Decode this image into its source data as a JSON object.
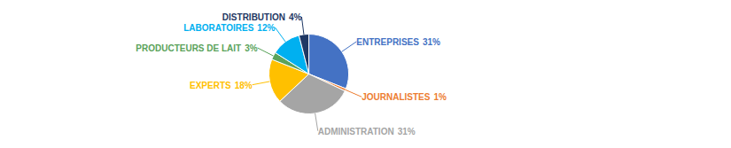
{
  "chart_data": {
    "type": "pie",
    "categories": [
      "ENTREPRISES",
      "JOURNALISTES",
      "ADMINISTRATION",
      "EXPERTS",
      "PRODUCTEURS DE LAIT",
      "LABORATOIRES",
      "DISTRIBUTION"
    ],
    "values": [
      31,
      1,
      31,
      18,
      3,
      12,
      4
    ],
    "value_labels": [
      "31%",
      "1%",
      "31%",
      "18%",
      "3%",
      "12%",
      "4%"
    ],
    "colors": [
      "#4472C4",
      "#ED7D31",
      "#A5A5A5",
      "#FFC000",
      "#5BA35B",
      "#00B0F0",
      "#1F3864"
    ],
    "data_labels": true
  }
}
